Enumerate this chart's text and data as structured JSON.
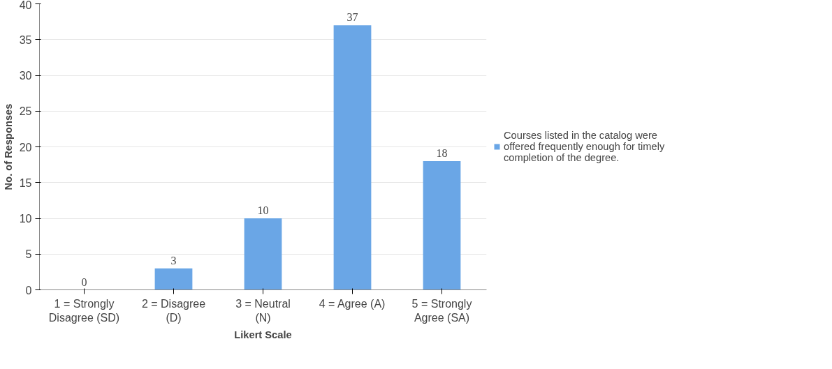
{
  "chart_data": {
    "type": "bar",
    "xlabel": "Likert Scale",
    "ylabel": "No. of Responses",
    "categories": [
      "1 = Strongly\nDisagree (SD)",
      "2 = Disagree\n(D)",
      "3 = Neutral\n(N)",
      "4 = Agree (A)",
      "5 = Strongly\nAgree (SA)"
    ],
    "series": [
      {
        "name": "Courses listed in the catalog were offered frequently enough for timely completion of the degree.",
        "color": "#6aa6e6",
        "values": [
          0,
          3,
          10,
          37,
          18
        ]
      }
    ],
    "ylim": [
      0,
      40
    ],
    "yticks": [
      0,
      5,
      10,
      15,
      20,
      25,
      30,
      35,
      40
    ],
    "grid": "y",
    "legend": "right",
    "data_labels": true
  }
}
